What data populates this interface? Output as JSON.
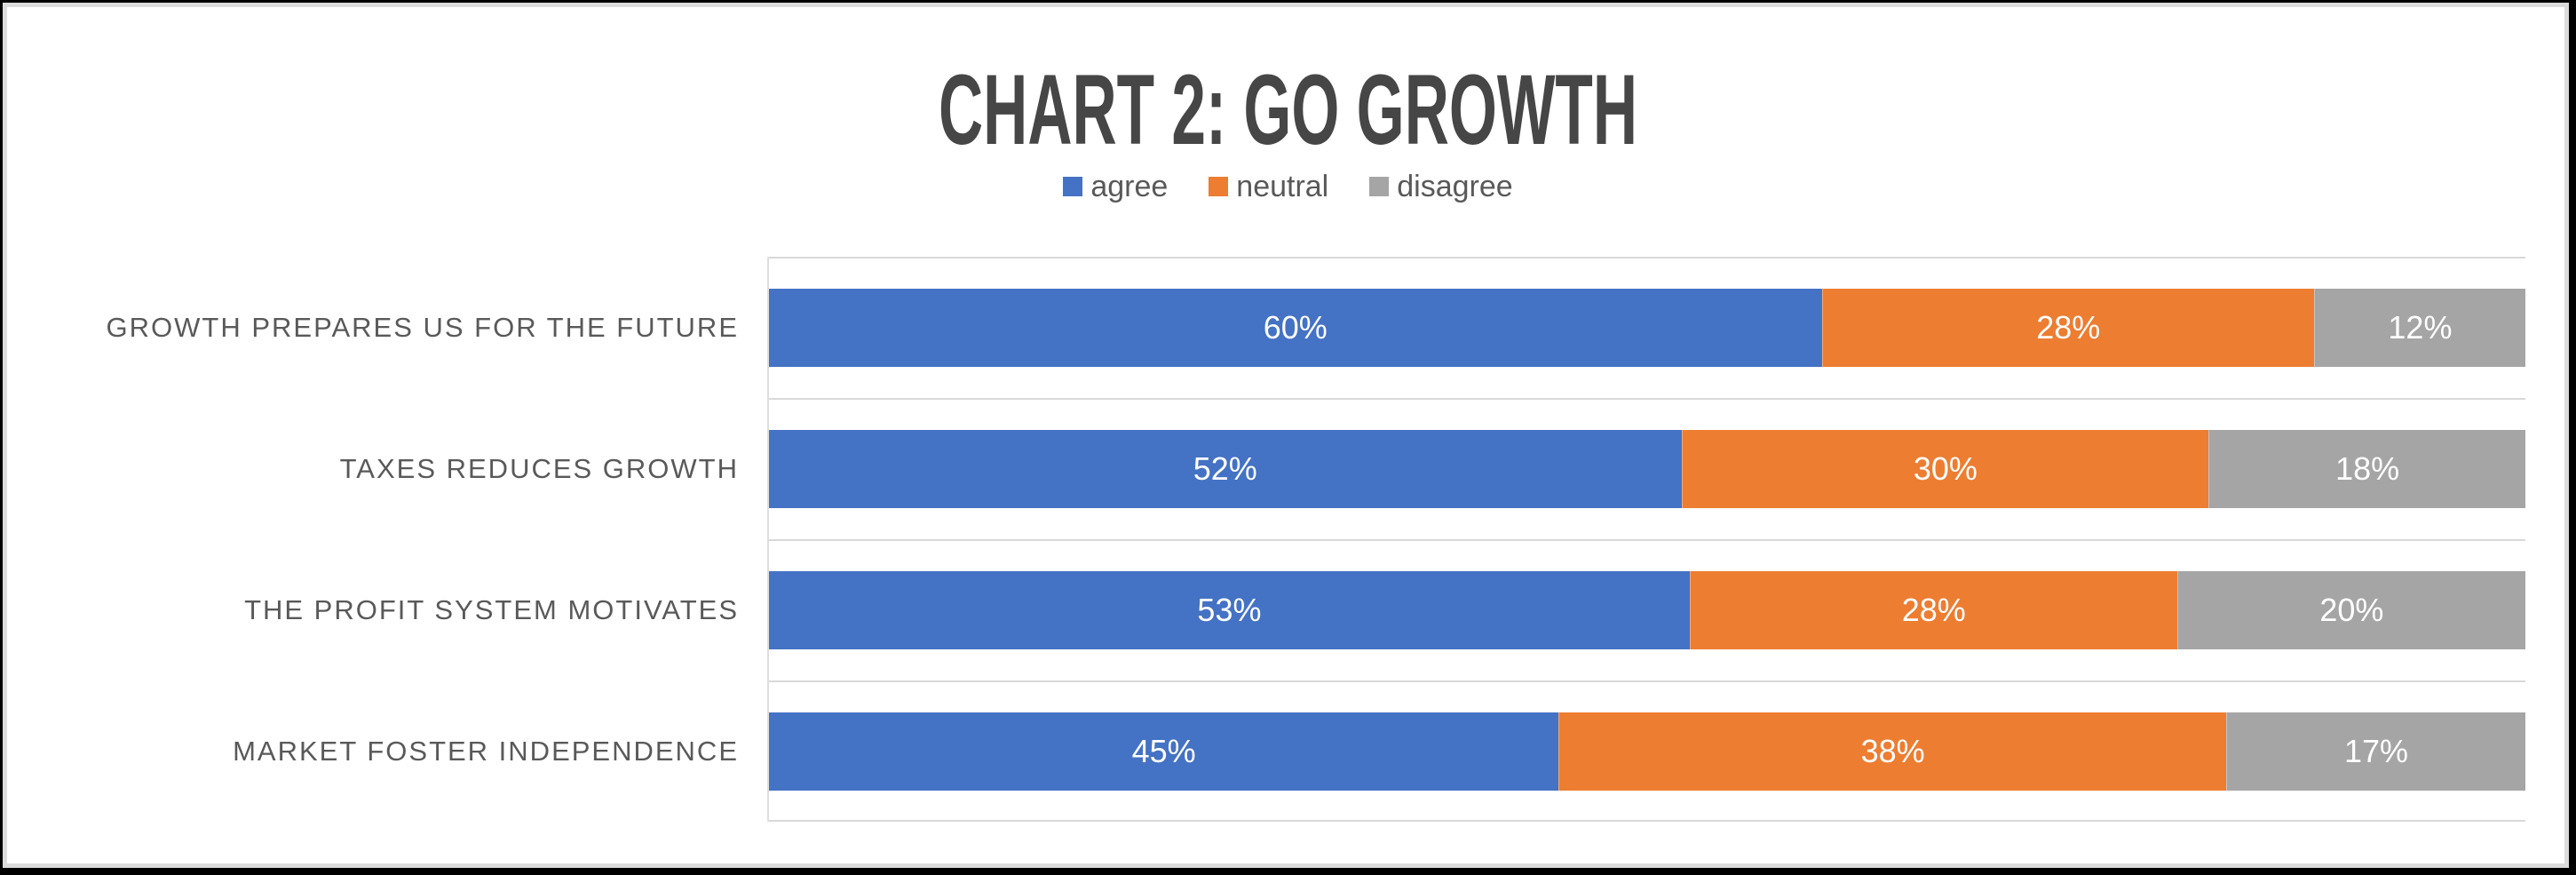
{
  "chart_data": {
    "type": "bar",
    "orientation": "horizontal",
    "stacked": true,
    "stacked_mode": "100%",
    "title": "CHART 2: GO GROWTH",
    "value_suffix": "%",
    "legend_position": "top-center",
    "gridlines": true,
    "categories": [
      "GROWTH PREPARES US FOR THE FUTURE",
      "TAXES REDUCES GROWTH",
      "THE PROFIT SYSTEM MOTIVATES",
      "MARKET FOSTER INDEPENDENCE"
    ],
    "series": [
      {
        "name": "agree",
        "color": "#4472C4",
        "values": [
          60,
          52,
          53,
          45
        ]
      },
      {
        "name": "neutral",
        "color": "#ED7D31",
        "values": [
          28,
          30,
          28,
          38
        ]
      },
      {
        "name": "disagree",
        "color": "#A5A5A5",
        "values": [
          12,
          18,
          20,
          17
        ]
      }
    ]
  },
  "colors": {
    "title_text": "#464646",
    "axis_text": "#595959",
    "gridline": "#D9D9D9",
    "data_label_text": "#FFFFFF",
    "frame_border": "#000000",
    "frame_inner_line": "#DCDCDC",
    "background": "#FFFFFF"
  }
}
